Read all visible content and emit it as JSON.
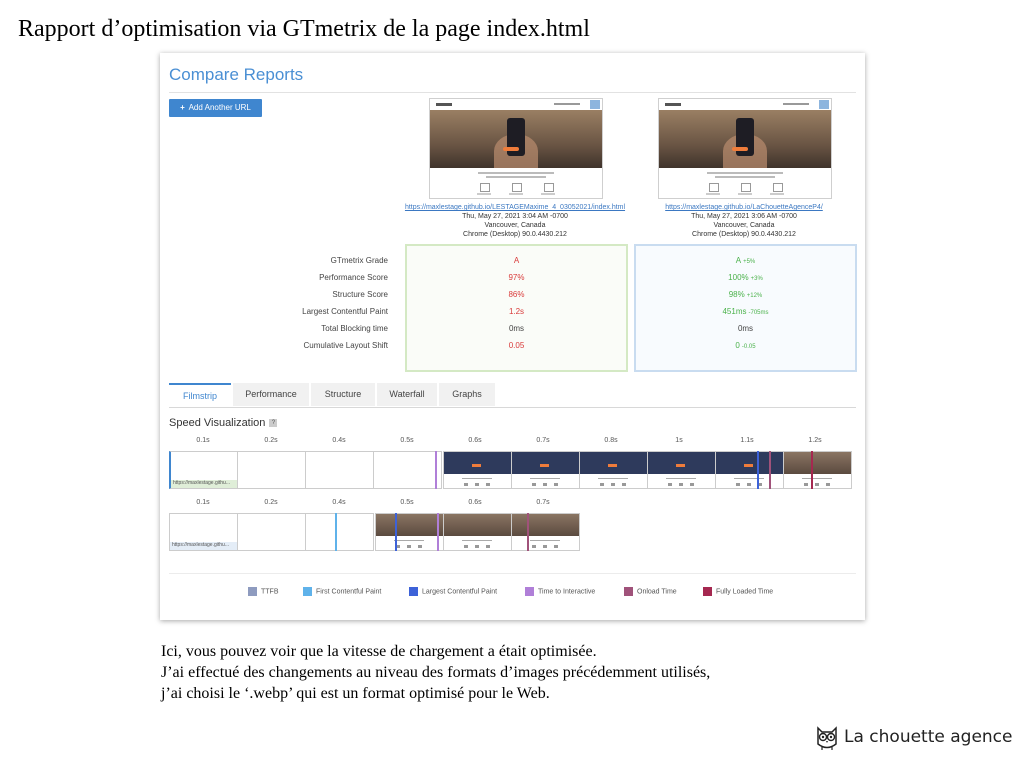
{
  "slide": {
    "title": "Rapport d’optimisation via GTmetrix de la page index.html",
    "body": [
      "Ici, vous pouvez voir que la vitesse de chargement a était optimisée.",
      "J’ai effectué des changements au niveau des formats d’images précédemment utilisés,",
      "j’ai choisi le ‘.webp’ qui est un format optimisé pour le Web."
    ],
    "brand_name": "La chouette agence",
    "brand_icon": "owl-icon"
  },
  "report": {
    "title": "Compare Reports",
    "add_button": {
      "icon": "plus-icon",
      "label": "Add Another URL"
    },
    "reports": [
      {
        "url": "https://maxlestage.github.io/LESTAGEMaxime_4_03052021/index.html",
        "date": "Thu, May 27, 2021 3:04 AM -0700",
        "location": "Vancouver, Canada",
        "browser": "Chrome (Desktop) 90.0.4430.212"
      },
      {
        "url": "https://maxlestage.github.io/LaChouetteAgenceP4/",
        "date": "Thu, May 27, 2021 3:06 AM -0700",
        "location": "Vancouver, Canada",
        "browser": "Chrome (Desktop) 90.0.4430.212"
      }
    ],
    "metric_labels": [
      "GTmetrix Grade",
      "Performance Score",
      "Structure Score",
      "Largest Contentful Paint",
      "Total Blocking time",
      "Cumulative Layout Shift"
    ],
    "left_values": [
      "A",
      "97%",
      "86%",
      "1.2s",
      "0ms",
      "0.05"
    ],
    "right_values": [
      "A",
      "100%",
      "98%",
      "451ms",
      "0ms",
      "0"
    ],
    "right_deltas": [
      "+5%",
      "+3%",
      "+12%",
      "-705ms",
      "",
      "-0.05"
    ],
    "tabs": [
      "Filmstrip",
      "Performance",
      "Structure",
      "Waterfall",
      "Graphs"
    ],
    "active_tab": "Filmstrip",
    "speed_title": "Speed Visualization",
    "help_icon": "?",
    "strip1_times": [
      "0.1s",
      "0.2s",
      "0.4s",
      "0.5s",
      "0.6s",
      "0.7s",
      "0.8s",
      "1s",
      "1.1s",
      "1.2s"
    ],
    "strip2_times": [
      "0.1s",
      "0.2s",
      "0.4s",
      "0.5s",
      "0.6s",
      "0.7s"
    ],
    "strip1_url": "https://maxlestage.githu...",
    "strip2_url": "https://maxlestage.githu...",
    "legend": [
      {
        "label": "TTFB",
        "color": "#8e9bbf"
      },
      {
        "label": "First Contentful Paint",
        "color": "#5fb2ea"
      },
      {
        "label": "Largest Contentful Paint",
        "color": "#3d62d8"
      },
      {
        "label": "Time to Interactive",
        "color": "#b07fd8"
      },
      {
        "label": "Onload Time",
        "color": "#a0527a"
      },
      {
        "label": "Fully Loaded Time",
        "color": "#a52850"
      }
    ],
    "colors": {
      "accent": "#3f86cf",
      "bad": "#d93a3a",
      "good": "#4bb24b"
    }
  }
}
